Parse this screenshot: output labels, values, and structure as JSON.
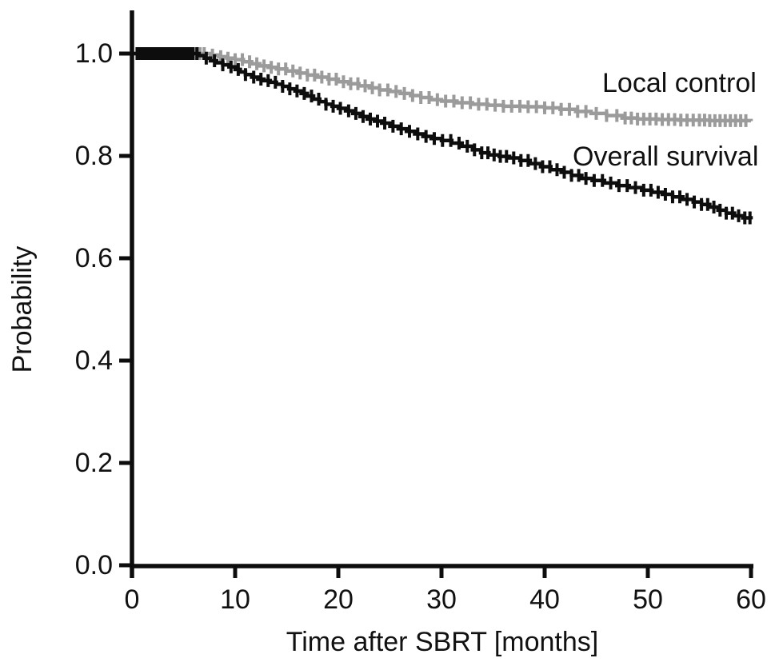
{
  "figure": {
    "background_color": "#ffffff",
    "text_color": "#111111",
    "axis_color": "#0d0d0d"
  },
  "chart_data": {
    "type": "line",
    "subtype": "kaplan-meier-step",
    "title": "",
    "xlabel": "Time after SBRT [months]",
    "ylabel": "Probability",
    "xlim": [
      0,
      60
    ],
    "ylim": [
      0.0,
      1.05
    ],
    "grid": false,
    "legend_position": "inline-right-of-curves",
    "x_ticks": [
      0,
      10,
      20,
      30,
      40,
      50,
      60
    ],
    "y_ticks": [
      1.0,
      0.8,
      0.6,
      0.4,
      0.2,
      0.0
    ],
    "y_tick_labels": [
      "1.0",
      "0.8",
      "0.6",
      "0.4",
      "0.2",
      "0.0"
    ],
    "x_tick_labels": [
      "0",
      "10",
      "20",
      "30",
      "40",
      "50",
      "60"
    ],
    "series": [
      {
        "name": "Local control",
        "color": "#9b9b9b",
        "points": [
          [
            0,
            1.0
          ],
          [
            7,
            1.0
          ],
          [
            7.6,
            0.997
          ],
          [
            8.4,
            0.994
          ],
          [
            9.2,
            0.991
          ],
          [
            10,
            0.988
          ],
          [
            10.8,
            0.984
          ],
          [
            11.6,
            0.98
          ],
          [
            12.4,
            0.976
          ],
          [
            13.2,
            0.973
          ],
          [
            14,
            0.97
          ],
          [
            15,
            0.966
          ],
          [
            16,
            0.962
          ],
          [
            17,
            0.958
          ],
          [
            18,
            0.954
          ],
          [
            19,
            0.95
          ],
          [
            20,
            0.945
          ],
          [
            21,
            0.941
          ],
          [
            22,
            0.937
          ],
          [
            23,
            0.933
          ],
          [
            24,
            0.929
          ],
          [
            25,
            0.926
          ],
          [
            26,
            0.922
          ],
          [
            27,
            0.918
          ],
          [
            28,
            0.914
          ],
          [
            29,
            0.91
          ],
          [
            30,
            0.907
          ],
          [
            31.5,
            0.904
          ],
          [
            33,
            0.901
          ],
          [
            34.5,
            0.899
          ],
          [
            36,
            0.897
          ],
          [
            38,
            0.896
          ],
          [
            40,
            0.894
          ],
          [
            41.5,
            0.891
          ],
          [
            43,
            0.887
          ],
          [
            44.5,
            0.883
          ],
          [
            46,
            0.879
          ],
          [
            47.5,
            0.874
          ],
          [
            49,
            0.872
          ],
          [
            51,
            0.871
          ],
          [
            53,
            0.87
          ],
          [
            56,
            0.869
          ],
          [
            60,
            0.868
          ]
        ],
        "censor_times": [
          0.6,
          1.0,
          1.4,
          1.8,
          2.2,
          2.6,
          3.0,
          3.4,
          3.8,
          4.2,
          4.6,
          5.0,
          5.4,
          5.8,
          6.2,
          6.6,
          7.0,
          7.8,
          8.6,
          9.3,
          10.0,
          10.7,
          11.4,
          12.1,
          12.8,
          13.5,
          14.2,
          14.9,
          15.6,
          16.3,
          17.0,
          17.7,
          18.4,
          19.1,
          19.8,
          20.5,
          21.2,
          21.9,
          22.6,
          23.3,
          24.0,
          24.8,
          25.6,
          26.4,
          27.2,
          28.0,
          28.8,
          29.6,
          30.4,
          31.2,
          32.0,
          32.8,
          33.6,
          34.4,
          35.2,
          36.0,
          36.8,
          37.6,
          38.4,
          39.2,
          40.0,
          40.8,
          41.6,
          42.4,
          43.2,
          44.0,
          45.0,
          46.0,
          47.0,
          47.8,
          48.4,
          49.0,
          49.6,
          50.2,
          50.8,
          51.4,
          52.0,
          52.6,
          53.2,
          53.8,
          54.4,
          55.0,
          55.5,
          56.0,
          56.5,
          57.0,
          57.5,
          58.0,
          58.5,
          59.0,
          59.5
        ]
      },
      {
        "name": "Overall survival",
        "color": "#0d0d0d",
        "points": [
          [
            0,
            1.0
          ],
          [
            6,
            1.0
          ],
          [
            6.5,
            0.996
          ],
          [
            7,
            0.991
          ],
          [
            7.6,
            0.986
          ],
          [
            8.2,
            0.982
          ],
          [
            8.8,
            0.978
          ],
          [
            9.4,
            0.974
          ],
          [
            10,
            0.969
          ],
          [
            10.5,
            0.964
          ],
          [
            11,
            0.959
          ],
          [
            11.6,
            0.954
          ],
          [
            12.2,
            0.95
          ],
          [
            12.8,
            0.947
          ],
          [
            13.4,
            0.944
          ],
          [
            14,
            0.94
          ],
          [
            14.6,
            0.936
          ],
          [
            15.2,
            0.931
          ],
          [
            15.8,
            0.927
          ],
          [
            16.4,
            0.922
          ],
          [
            17,
            0.917
          ],
          [
            17.6,
            0.911
          ],
          [
            18.2,
            0.906
          ],
          [
            18.8,
            0.901
          ],
          [
            19.4,
            0.897
          ],
          [
            20,
            0.893
          ],
          [
            20.7,
            0.888
          ],
          [
            21.4,
            0.883
          ],
          [
            22.1,
            0.877
          ],
          [
            22.8,
            0.872
          ],
          [
            23.5,
            0.868
          ],
          [
            24.2,
            0.864
          ],
          [
            25,
            0.858
          ],
          [
            25.8,
            0.853
          ],
          [
            26.6,
            0.848
          ],
          [
            27.4,
            0.843
          ],
          [
            28.2,
            0.838
          ],
          [
            29,
            0.834
          ],
          [
            30,
            0.83
          ],
          [
            31,
            0.825
          ],
          [
            32,
            0.819
          ],
          [
            33,
            0.812
          ],
          [
            33.8,
            0.806
          ],
          [
            34.6,
            0.802
          ],
          [
            35.6,
            0.799
          ],
          [
            36.6,
            0.796
          ],
          [
            37.6,
            0.791
          ],
          [
            38.6,
            0.785
          ],
          [
            39.6,
            0.779
          ],
          [
            40.6,
            0.773
          ],
          [
            41.6,
            0.768
          ],
          [
            42.6,
            0.762
          ],
          [
            43.6,
            0.756
          ],
          [
            44.6,
            0.752
          ],
          [
            45.8,
            0.747
          ],
          [
            47,
            0.742
          ],
          [
            48.2,
            0.738
          ],
          [
            49.4,
            0.733
          ],
          [
            50.4,
            0.729
          ],
          [
            51.4,
            0.725
          ],
          [
            52.4,
            0.72
          ],
          [
            53.4,
            0.715
          ],
          [
            54.4,
            0.71
          ],
          [
            55.2,
            0.705
          ],
          [
            56,
            0.7
          ],
          [
            56.8,
            0.694
          ],
          [
            57.6,
            0.688
          ],
          [
            58.4,
            0.683
          ],
          [
            59.2,
            0.679
          ],
          [
            60,
            0.676
          ]
        ],
        "censor_times": [
          0.5,
          0.8,
          1.1,
          1.4,
          1.7,
          2.0,
          2.3,
          2.6,
          2.9,
          3.2,
          3.5,
          3.8,
          4.1,
          4.4,
          4.7,
          5.0,
          5.3,
          5.6,
          5.9,
          6.3,
          7.2,
          8.0,
          8.8,
          9.6,
          10.3,
          11.0,
          11.8,
          12.5,
          13.2,
          13.9,
          14.6,
          15.3,
          16.0,
          16.7,
          17.4,
          18.1,
          18.8,
          19.5,
          20.2,
          21.0,
          21.7,
          22.4,
          23.1,
          23.8,
          24.5,
          25.3,
          26.1,
          26.9,
          27.7,
          28.5,
          29.3,
          30.1,
          30.9,
          31.7,
          32.5,
          33.2,
          33.9,
          34.5,
          35.1,
          35.7,
          36.3,
          37.0,
          37.7,
          38.4,
          39.1,
          39.8,
          40.5,
          41.2,
          41.9,
          42.6,
          43.3,
          44.0,
          44.8,
          45.6,
          46.4,
          47.2,
          48.0,
          48.8,
          49.6,
          50.3,
          51.0,
          51.7,
          52.4,
          53.1,
          53.8,
          54.5,
          55.2,
          55.8,
          56.4,
          57.0,
          57.6,
          58.2,
          58.8,
          59.4,
          59.9
        ]
      }
    ]
  },
  "labels": {
    "xlabel": "Time after SBRT [months]",
    "ylabel": "Probability",
    "legend_local_control": "Local control",
    "legend_overall_survival": "Overall survival"
  }
}
